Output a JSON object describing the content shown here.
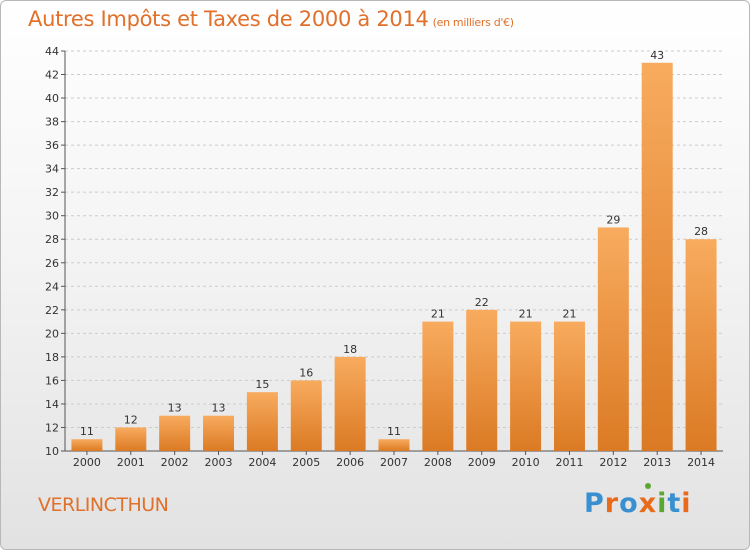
{
  "title": "Autres Impôts et Taxes de 2000 à 2014",
  "subtitle": "(en milliers d'€)",
  "commune": "VERLINCTHUN",
  "logo": {
    "text": "Proxiti",
    "colors": [
      "#3a8fd0",
      "#e86a1a",
      "#3a8fd0",
      "#e86a1a",
      "#5aa832",
      "#3a8fd0",
      "#e86a1a"
    ]
  },
  "colors": {
    "accent": "#e0702a",
    "bar_light": "#f8ab5e",
    "bar_dark": "#db7a24",
    "axis": "#555555",
    "grid": "#cccccc"
  },
  "chart_data": {
    "type": "bar",
    "title": "Autres Impôts et Taxes de 2000 à 2014",
    "subtitle": "(en milliers d'€)",
    "categories": [
      "2000",
      "2001",
      "2002",
      "2003",
      "2004",
      "2005",
      "2006",
      "2007",
      "2008",
      "2009",
      "2010",
      "2011",
      "2012",
      "2013",
      "2014"
    ],
    "values": [
      11,
      12,
      13,
      13,
      15,
      16,
      18,
      11,
      21,
      22,
      21,
      21,
      29,
      43,
      28
    ],
    "ylim": [
      10,
      44
    ],
    "yticks": [
      10,
      12,
      14,
      16,
      18,
      20,
      22,
      24,
      26,
      28,
      30,
      32,
      34,
      36,
      38,
      40,
      42,
      44
    ],
    "grid": "horizontal dashed",
    "data_labels": true
  }
}
